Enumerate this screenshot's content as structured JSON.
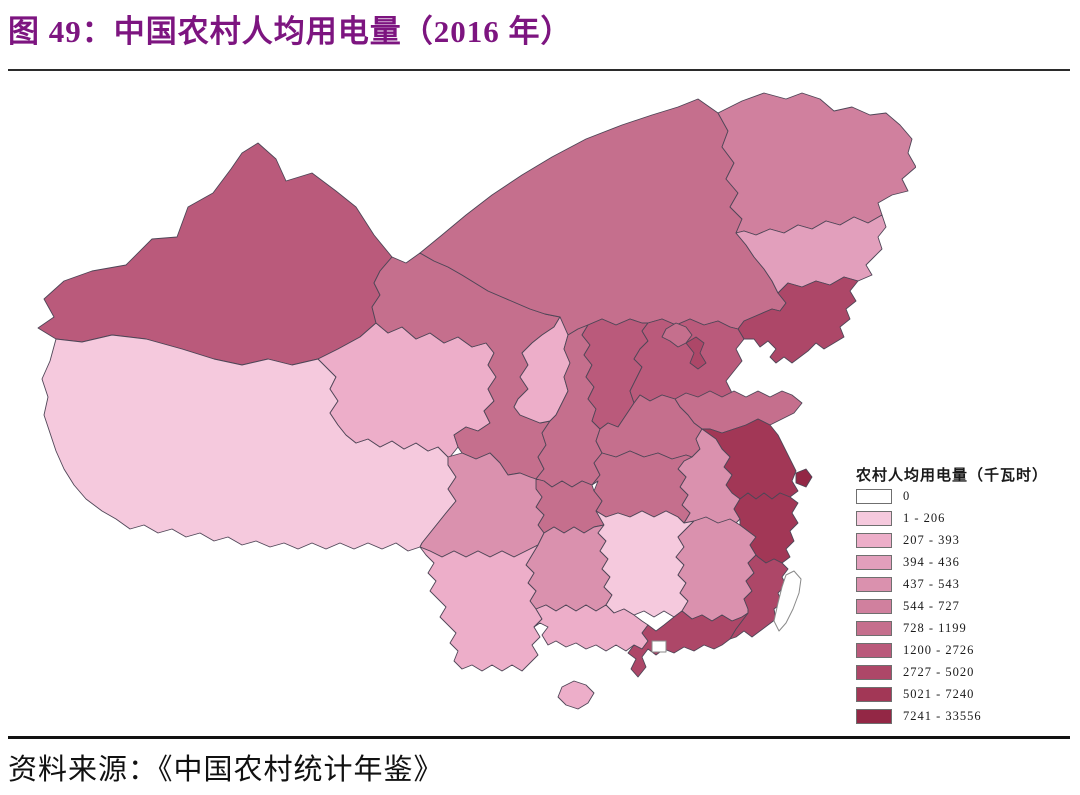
{
  "figure": {
    "title": "图 49：中国农村人均用电量（2016 年）",
    "source": "资料来源：《中国农村统计年鉴》"
  },
  "colors": {
    "title": "#7d1580",
    "rule_top": "#2b2b2b",
    "rule_bottom": "#111111",
    "province_border": "#4f4657",
    "no_data_border": "#8a8a8a"
  },
  "legend": {
    "title": "农村人均用电量（千瓦时）",
    "classes": [
      {
        "label": "0",
        "color": "#ffffff"
      },
      {
        "label": "1 - 206",
        "color": "#f5c9dd"
      },
      {
        "label": "207 - 393",
        "color": "#edaec9"
      },
      {
        "label": "394 - 436",
        "color": "#e29fbc"
      },
      {
        "label": "437 - 543",
        "color": "#da91ae"
      },
      {
        "label": "544 - 727",
        "color": "#d0809e"
      },
      {
        "label": "728 - 1199",
        "color": "#c56f8d"
      },
      {
        "label": "1200 - 2726",
        "color": "#ba5a7b"
      },
      {
        "label": "2727 - 5020",
        "color": "#ad4768"
      },
      {
        "label": "5021 - 7240",
        "color": "#a23756"
      },
      {
        "label": "7241 - 33556",
        "color": "#932745"
      }
    ]
  },
  "chart_data": {
    "type": "choropleth_map",
    "title": "中国农村人均用电量（2016 年）",
    "unit": "千瓦时",
    "year": 2016,
    "legend_title": "农村人均用电量（千瓦时）",
    "legend_position": "right-bottom",
    "provinces": [
      {
        "id": "xinjiang",
        "name": "新疆",
        "bin": "1200 - 2726",
        "class_index": 7
      },
      {
        "id": "tibet",
        "name": "西藏",
        "bin": "1 - 206",
        "class_index": 1
      },
      {
        "id": "qinghai",
        "name": "青海",
        "bin": "207 - 393",
        "class_index": 2
      },
      {
        "id": "gansu",
        "name": "甘肃",
        "bin": "728 - 1199",
        "class_index": 6
      },
      {
        "id": "inner-mongolia",
        "name": "内蒙古",
        "bin": "728 - 1199",
        "class_index": 6
      },
      {
        "id": "heilongjiang",
        "name": "黑龙江",
        "bin": "544 - 727",
        "class_index": 5
      },
      {
        "id": "jilin",
        "name": "吉林",
        "bin": "394 - 436",
        "class_index": 3
      },
      {
        "id": "liaoning",
        "name": "辽宁",
        "bin": "2727 - 5020",
        "class_index": 8
      },
      {
        "id": "ningxia",
        "name": "宁夏",
        "bin": "207 - 393",
        "class_index": 2
      },
      {
        "id": "shaanxi",
        "name": "陕西",
        "bin": "728 - 1199",
        "class_index": 6
      },
      {
        "id": "shanxi",
        "name": "山西",
        "bin": "1200 - 2726",
        "class_index": 7
      },
      {
        "id": "hebei",
        "name": "河北",
        "bin": "1200 - 2726",
        "class_index": 7
      },
      {
        "id": "shandong",
        "name": "山东",
        "bin": "728 - 1199",
        "class_index": 6
      },
      {
        "id": "henan",
        "name": "河南",
        "bin": "728 - 1199",
        "class_index": 6
      },
      {
        "id": "jiangsu",
        "name": "江苏",
        "bin": "5021 - 7240",
        "class_index": 9
      },
      {
        "id": "anhui",
        "name": "安徽",
        "bin": "437 - 543",
        "class_index": 4
      },
      {
        "id": "hubei",
        "name": "湖北",
        "bin": "728 - 1199",
        "class_index": 6
      },
      {
        "id": "chongqing",
        "name": "重庆",
        "bin": "728 - 1199",
        "class_index": 6
      },
      {
        "id": "sichuan",
        "name": "四川",
        "bin": "437 - 543",
        "class_index": 4
      },
      {
        "id": "guizhou",
        "name": "贵州",
        "bin": "437 - 543",
        "class_index": 4
      },
      {
        "id": "yunnan",
        "name": "云南",
        "bin": "207 - 393",
        "class_index": 2
      },
      {
        "id": "hunan",
        "name": "湖南",
        "bin": "1 - 206",
        "class_index": 1
      },
      {
        "id": "jiangxi",
        "name": "江西",
        "bin": "437 - 543",
        "class_index": 4
      },
      {
        "id": "zhejiang",
        "name": "浙江",
        "bin": "5021 - 7240",
        "class_index": 9
      },
      {
        "id": "fujian",
        "name": "福建",
        "bin": "2727 - 5020",
        "class_index": 8
      },
      {
        "id": "guangxi",
        "name": "广西",
        "bin": "207 - 393",
        "class_index": 2
      },
      {
        "id": "guangdong",
        "name": "广东",
        "bin": "2727 - 5020",
        "class_index": 8
      },
      {
        "id": "hainan",
        "name": "海南",
        "bin": "207 - 393",
        "class_index": 2
      },
      {
        "id": "beijing",
        "name": "北京",
        "bin": "728 - 1199",
        "class_index": 6
      },
      {
        "id": "tianjin",
        "name": "天津",
        "bin": "2727 - 5020",
        "class_index": 8
      },
      {
        "id": "shanghai",
        "name": "上海",
        "bin": "7241 - 33556",
        "class_index": 10
      },
      {
        "id": "taiwan",
        "name": "台湾",
        "bin": "0",
        "class_index": 0
      },
      {
        "id": "hongkong-macau",
        "name": "港澳",
        "bin": "0",
        "class_index": 0
      }
    ]
  }
}
